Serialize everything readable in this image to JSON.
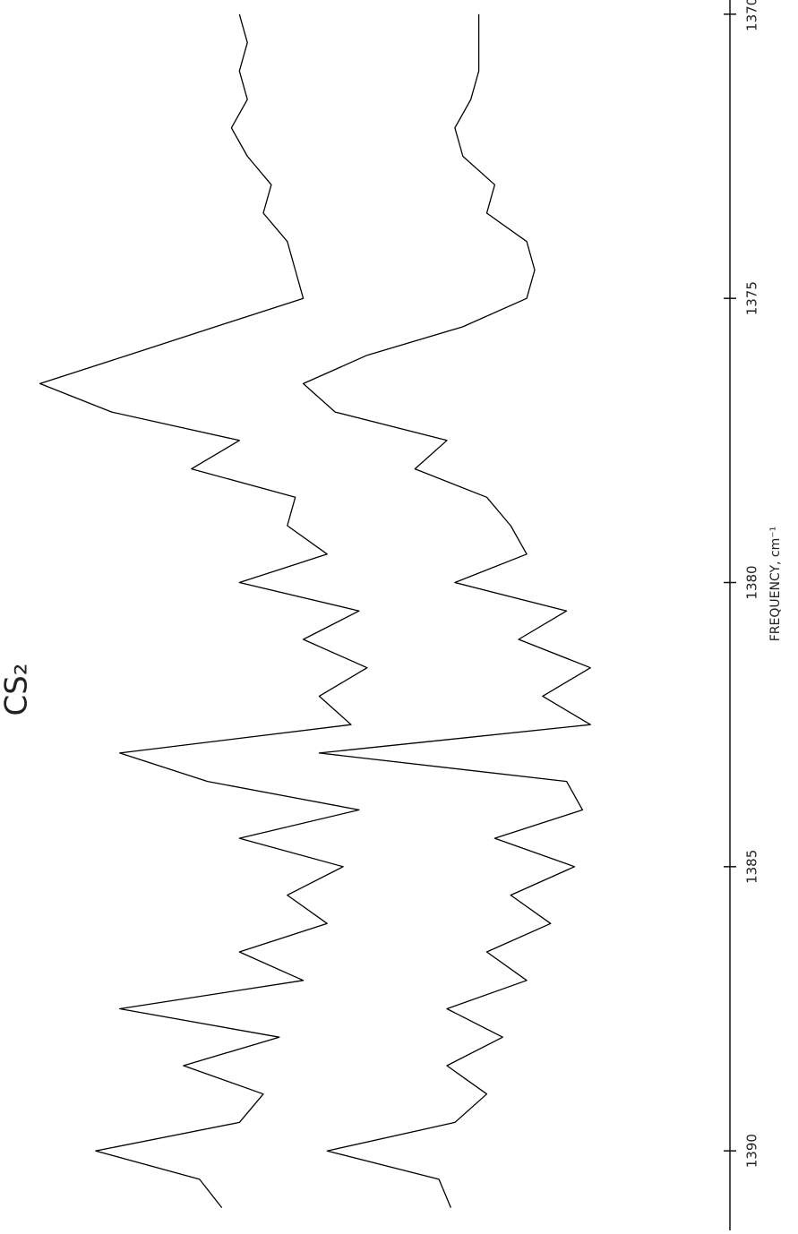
{
  "chart_data": {
    "type": "line",
    "title": "CS₂",
    "x_label": "FREQUENCY, cm⁻¹",
    "x": [
      1391.0,
      1390.5,
      1390.0,
      1389.5,
      1389.0,
      1388.5,
      1388.0,
      1387.5,
      1387.0,
      1386.5,
      1386.0,
      1385.5,
      1385.0,
      1384.5,
      1384.0,
      1383.5,
      1383.0,
      1382.5,
      1382.0,
      1381.5,
      1381.0,
      1380.5,
      1380.0,
      1379.5,
      1379.0,
      1378.5,
      1378.0,
      1377.5,
      1377.0,
      1376.5,
      1376.0,
      1375.5,
      1375.0,
      1374.5,
      1374.0,
      1373.5,
      1373.0,
      1372.5,
      1372.0,
      1371.5,
      1371.0,
      1370.5,
      1370.0
    ],
    "series": [
      {
        "color": "#000000",
        "values": [
          27.8,
          25,
          12,
          30,
          33,
          23,
          35,
          15,
          38,
          30,
          41,
          36,
          43,
          30,
          45,
          26,
          15,
          44,
          40,
          46,
          38,
          45,
          30,
          41,
          36,
          37,
          24,
          30,
          14,
          5,
          16,
          27,
          38,
          37,
          36,
          33,
          34,
          31,
          29,
          31,
          30,
          31,
          30
        ]
      },
      {
        "color": "#000000",
        "values": [
          56.5,
          55,
          41,
          57,
          61,
          56,
          63,
          56,
          66,
          61,
          69,
          64,
          72,
          62,
          73,
          71,
          40,
          74,
          68,
          74,
          65,
          71,
          57,
          66,
          64,
          61,
          52,
          56,
          42,
          38,
          46,
          58,
          66,
          67,
          66,
          61,
          62,
          58,
          57,
          59,
          60,
          60,
          60
        ]
      }
    ],
    "xlim": [
      1369.75,
      1391.4
    ],
    "xticks": [
      1370,
      1375,
      1380,
      1385,
      1390
    ],
    "ylim": [
      0,
      100
    ]
  }
}
